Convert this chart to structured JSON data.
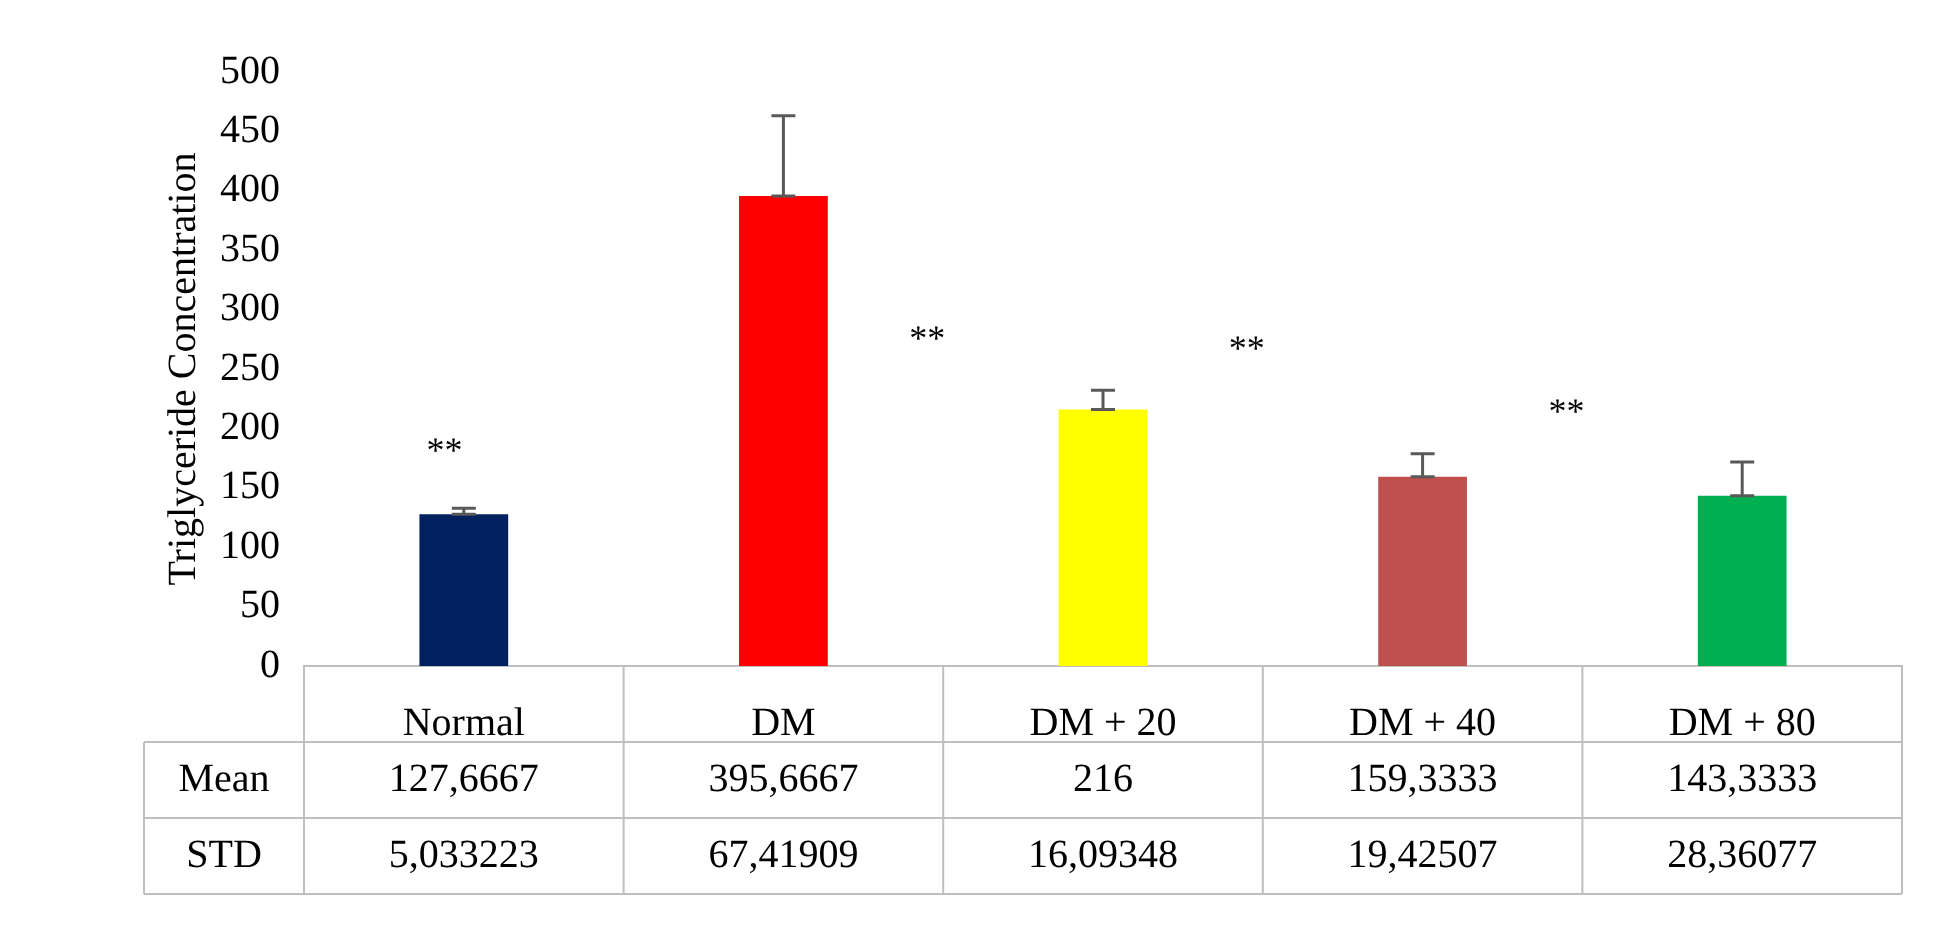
{
  "chart_data": {
    "type": "bar",
    "ylabel": "Triglyceride Concentration",
    "categories": [
      "Normal",
      "DM",
      "DM + 20",
      "DM + 40",
      "DM + 80"
    ],
    "series": [
      {
        "name": "Mean",
        "colors": [
          "#002060",
          "#ff0000",
          "#ffff00",
          "#c0504d",
          "#00b050"
        ],
        "values": [
          127.6667,
          395.6667,
          216,
          159.3333,
          143.3333
        ],
        "value_labels": [
          "127,6667",
          "395,6667",
          "216",
          "159,3333",
          "143,3333"
        ],
        "errors": [
          [
            127.6667,
            132.6999
          ],
          [
            395.6667,
            463.0858
          ],
          [
            216,
            232.0935
          ],
          [
            159.3333,
            178.7584
          ],
          [
            143.3333,
            171.6941
          ]
        ]
      }
    ],
    "ylim": [
      0,
      500
    ],
    "yticks": [
      0,
      50,
      100,
      150,
      200,
      250,
      300,
      350,
      400,
      450,
      500
    ],
    "grid": false,
    "legend": false,
    "annotations": [
      "**",
      "**",
      "**",
      "**",
      "STD",
      "5,033223",
      "67,41909",
      "16,09348",
      "19,42507",
      "28,36077"
    ]
  }
}
